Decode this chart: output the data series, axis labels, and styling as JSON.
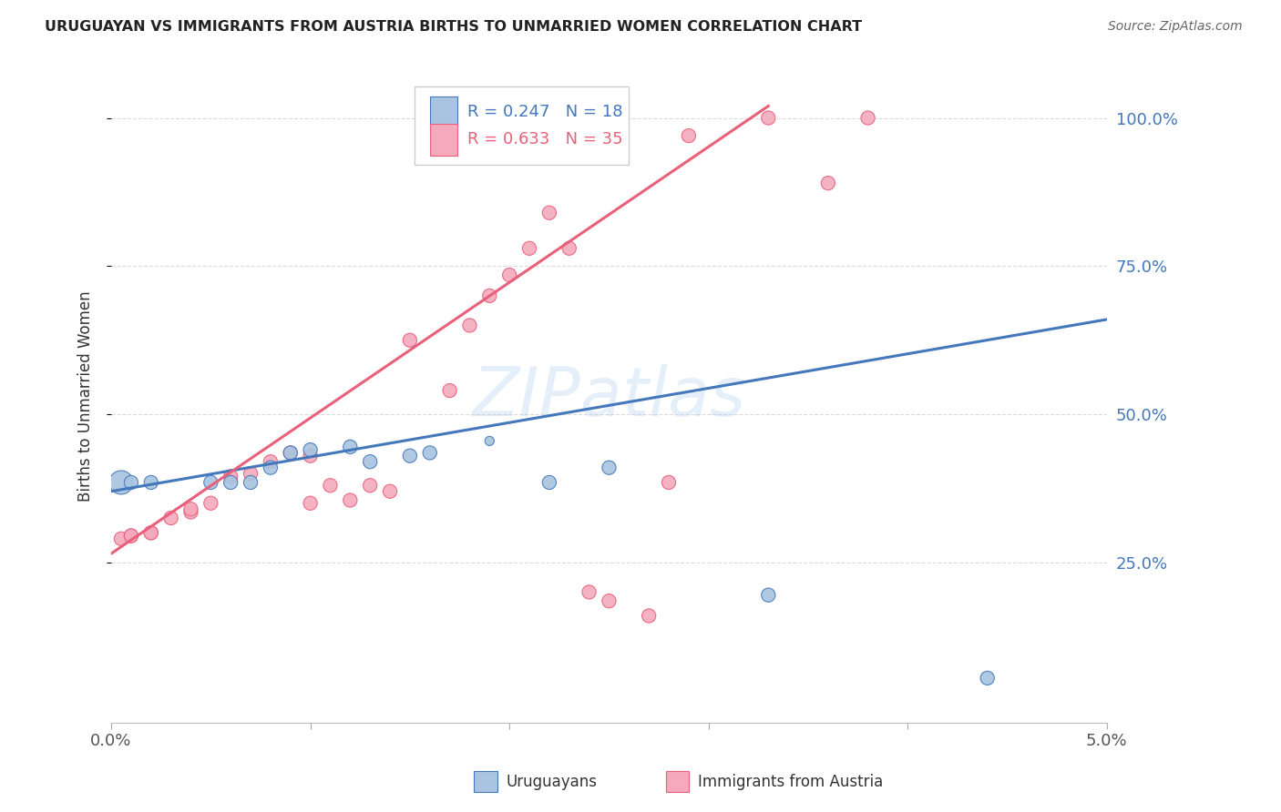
{
  "title": "URUGUAYAN VS IMMIGRANTS FROM AUSTRIA BIRTHS TO UNMARRIED WOMEN CORRELATION CHART",
  "source": "Source: ZipAtlas.com",
  "ylabel": "Births to Unmarried Women",
  "xlim": [
    0.0,
    0.05
  ],
  "ylim": [
    -0.02,
    1.08
  ],
  "yticks": [
    0.25,
    0.5,
    0.75,
    1.0
  ],
  "ytick_labels": [
    "25.0%",
    "50.0%",
    "75.0%",
    "100.0%"
  ],
  "legend_blue_r": "R = 0.247",
  "legend_blue_n": "N = 18",
  "legend_pink_r": "R = 0.633",
  "legend_pink_n": "N = 35",
  "blue_color": "#A8C4E0",
  "pink_color": "#F4AABC",
  "blue_line_color": "#4477BB",
  "pink_line_color": "#E8607A",
  "watermark": "ZIPatlas",
  "blue_scatter_x": [
    0.0005,
    0.001,
    0.002,
    0.005,
    0.006,
    0.007,
    0.008,
    0.009,
    0.01,
    0.012,
    0.013,
    0.015,
    0.016,
    0.019,
    0.022,
    0.025,
    0.033,
    0.044
  ],
  "blue_scatter_y": [
    0.385,
    0.385,
    0.385,
    0.385,
    0.385,
    0.385,
    0.41,
    0.435,
    0.44,
    0.445,
    0.42,
    0.43,
    0.435,
    0.455,
    0.385,
    0.41,
    0.195,
    0.055
  ],
  "blue_scatter_sizes": [
    350,
    120,
    120,
    120,
    120,
    120,
    120,
    120,
    120,
    120,
    120,
    120,
    120,
    53,
    120,
    120,
    120,
    120
  ],
  "pink_scatter_x": [
    0.0005,
    0.001,
    0.001,
    0.002,
    0.002,
    0.003,
    0.004,
    0.004,
    0.005,
    0.006,
    0.007,
    0.008,
    0.009,
    0.01,
    0.01,
    0.011,
    0.012,
    0.013,
    0.014,
    0.015,
    0.017,
    0.018,
    0.019,
    0.02,
    0.021,
    0.022,
    0.023,
    0.024,
    0.025,
    0.027,
    0.028,
    0.029,
    0.033,
    0.036,
    0.038
  ],
  "pink_scatter_y": [
    0.29,
    0.295,
    0.295,
    0.3,
    0.3,
    0.325,
    0.335,
    0.34,
    0.35,
    0.395,
    0.4,
    0.42,
    0.435,
    0.43,
    0.35,
    0.38,
    0.355,
    0.38,
    0.37,
    0.625,
    0.54,
    0.65,
    0.7,
    0.735,
    0.78,
    0.84,
    0.78,
    0.2,
    0.185,
    0.16,
    0.385,
    0.97,
    1.0,
    0.89,
    1.0
  ],
  "pink_scatter_sizes": [
    120,
    120,
    120,
    120,
    120,
    120,
    120,
    120,
    120,
    120,
    120,
    120,
    120,
    120,
    120,
    120,
    120,
    120,
    120,
    120,
    120,
    120,
    120,
    120,
    120,
    120,
    120,
    120,
    120,
    120,
    120,
    120,
    120,
    120,
    120
  ],
  "blue_line_x": [
    0.0,
    0.05
  ],
  "blue_line_y": [
    0.37,
    0.66
  ],
  "pink_line_x": [
    0.0,
    0.033
  ],
  "pink_line_y": [
    0.265,
    1.02
  ],
  "marker_size": 100,
  "large_marker_size": 350
}
